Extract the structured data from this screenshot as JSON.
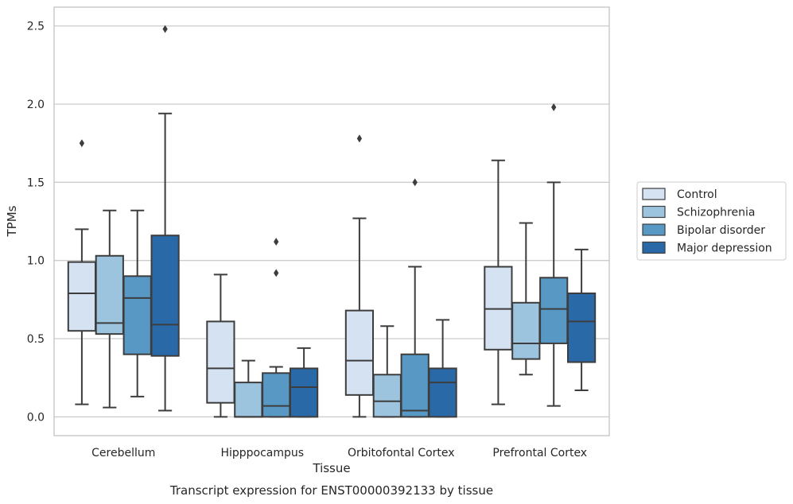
{
  "caption": "Transcript expression for ENST00000392133 by tissue",
  "chart_data": {
    "type": "box",
    "xlabel": "Tissue",
    "ylabel": "TPMs",
    "ylim": [
      -0.12,
      2.62
    ],
    "yticks": [
      "0.0",
      "0.5",
      "1.0",
      "1.5",
      "2.0",
      "2.5"
    ],
    "grid": true,
    "legend_position": "right",
    "categories": [
      "Cerebellum",
      "Hipppocampus",
      "Orbitofontal Cortex",
      "Prefrontal Cortex"
    ],
    "series": [
      {
        "name": "Control",
        "color": "#d4e2f1",
        "boxes": [
          {
            "whislo": 0.08,
            "q1": 0.55,
            "med": 0.79,
            "q3": 0.99,
            "whishi": 1.2,
            "fliers": [
              1.75
            ]
          },
          {
            "whislo": 0.0,
            "q1": 0.09,
            "med": 0.31,
            "q3": 0.61,
            "whishi": 0.91,
            "fliers": []
          },
          {
            "whislo": 0.0,
            "q1": 0.14,
            "med": 0.36,
            "q3": 0.68,
            "whishi": 1.27,
            "fliers": [
              1.78
            ]
          },
          {
            "whislo": 0.08,
            "q1": 0.43,
            "med": 0.69,
            "q3": 0.96,
            "whishi": 1.64,
            "fliers": []
          }
        ]
      },
      {
        "name": "Schizophrenia",
        "color": "#9dc4de",
        "boxes": [
          {
            "whislo": 0.06,
            "q1": 0.53,
            "med": 0.6,
            "q3": 1.03,
            "whishi": 1.32,
            "fliers": []
          },
          {
            "whislo": 0.0,
            "q1": 0.0,
            "med": 0.0,
            "q3": 0.22,
            "whishi": 0.36,
            "fliers": []
          },
          {
            "whislo": 0.0,
            "q1": 0.0,
            "med": 0.1,
            "q3": 0.27,
            "whishi": 0.58,
            "fliers": []
          },
          {
            "whislo": 0.27,
            "q1": 0.37,
            "med": 0.47,
            "q3": 0.73,
            "whishi": 1.24,
            "fliers": []
          }
        ]
      },
      {
        "name": "Bipolar disorder",
        "color": "#5898c5",
        "boxes": [
          {
            "whislo": 0.13,
            "q1": 0.4,
            "med": 0.76,
            "q3": 0.9,
            "whishi": 1.32,
            "fliers": []
          },
          {
            "whislo": 0.0,
            "q1": 0.0,
            "med": 0.07,
            "q3": 0.28,
            "whishi": 0.32,
            "fliers": [
              0.92,
              1.12
            ]
          },
          {
            "whislo": 0.0,
            "q1": 0.0,
            "med": 0.04,
            "q3": 0.4,
            "whishi": 0.96,
            "fliers": [
              1.5
            ]
          },
          {
            "whislo": 0.07,
            "q1": 0.47,
            "med": 0.69,
            "q3": 0.89,
            "whishi": 1.5,
            "fliers": [
              1.98
            ]
          }
        ]
      },
      {
        "name": "Major depression",
        "color": "#2a69a8",
        "boxes": [
          {
            "whislo": 0.04,
            "q1": 0.39,
            "med": 0.59,
            "q3": 1.16,
            "whishi": 1.94,
            "fliers": [
              2.48
            ]
          },
          {
            "whislo": 0.0,
            "q1": 0.0,
            "med": 0.19,
            "q3": 0.31,
            "whishi": 0.44,
            "fliers": []
          },
          {
            "whislo": 0.0,
            "q1": 0.0,
            "med": 0.22,
            "q3": 0.31,
            "whishi": 0.62,
            "fliers": []
          },
          {
            "whislo": 0.17,
            "q1": 0.35,
            "med": 0.61,
            "q3": 0.79,
            "whishi": 1.07,
            "fliers": []
          }
        ]
      }
    ]
  }
}
